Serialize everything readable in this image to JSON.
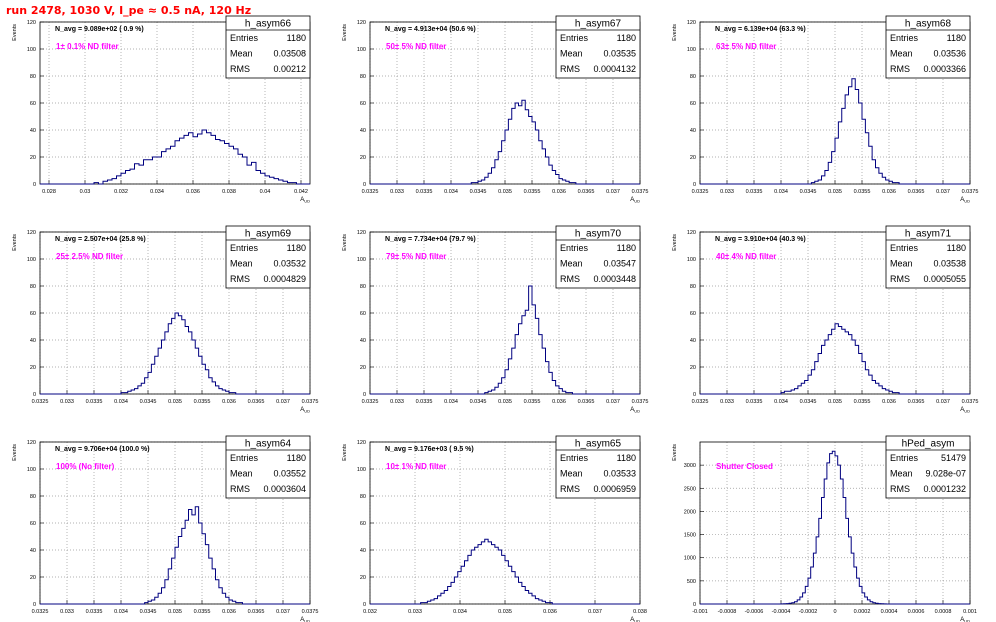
{
  "run_title": "run 2478,  1030 V, I_pe ≈ 0.5 nA, 120 Hz",
  "chart_data": [
    {
      "type": "histogram",
      "name": "h_asym66",
      "entries": "1180",
      "mean": "0.03508",
      "rms": "0.00212",
      "n_avg": "N_avg = 9.089e+02 ( 0.9 %)",
      "filter": "1± 0.1% ND filter",
      "xlabel": "A_UD",
      "ylabel": "Events",
      "ylim": [
        0,
        120
      ],
      "yticks": [
        0,
        20,
        40,
        60,
        80,
        100,
        120
      ],
      "xlim": [
        0.0275,
        0.0425
      ],
      "xticks": [
        "0.028",
        "0.03",
        "0.032",
        "0.034",
        "0.036",
        "0.038",
        "0.04",
        "0.042"
      ],
      "center": 0.03508,
      "sigma": 0.00212,
      "bins": 60,
      "values": [
        0,
        0,
        0,
        0,
        0,
        0,
        0,
        0,
        0,
        0,
        0,
        0,
        1,
        0,
        2,
        3,
        4,
        6,
        8,
        10,
        11,
        15,
        14,
        18,
        18,
        20,
        20,
        24,
        26,
        28,
        32,
        34,
        36,
        38,
        35,
        37,
        40,
        38,
        36,
        33,
        32,
        30,
        28,
        26,
        22,
        20,
        14,
        16,
        10,
        8,
        6,
        5,
        4,
        3,
        2,
        1,
        1,
        0,
        0,
        0
      ]
    },
    {
      "type": "histogram",
      "name": "h_asym67",
      "entries": "1180",
      "mean": "0.03535",
      "rms": "0.0004132",
      "n_avg": "N_avg = 4.913e+04 (50.6 %)",
      "filter": "50± 5% ND filter",
      "xlabel": "A_UD",
      "ylabel": "Events",
      "ylim": [
        0,
        120
      ],
      "yticks": [
        0,
        20,
        40,
        60,
        80,
        100,
        120
      ],
      "xlim": [
        0.0325,
        0.0375
      ],
      "xticks": [
        "0.0325",
        "0.033",
        "0.0335",
        "0.034",
        "0.0345",
        "0.035",
        "0.0355",
        "0.036",
        "0.0365",
        "0.037",
        "0.0375"
      ],
      "center": 0.03535,
      "sigma": 0.0004132,
      "bins": 80,
      "values": [
        0,
        0,
        0,
        0,
        0,
        0,
        0,
        0,
        0,
        0,
        0,
        0,
        0,
        0,
        0,
        0,
        0,
        0,
        0,
        0,
        0,
        0,
        0,
        0,
        0,
        0,
        0,
        0,
        0,
        0,
        1,
        1,
        2,
        3,
        5,
        8,
        12,
        18,
        24,
        32,
        40,
        48,
        56,
        60,
        58,
        62,
        55,
        50,
        46,
        40,
        32,
        26,
        20,
        14,
        10,
        7,
        4,
        3,
        2,
        1,
        1,
        0,
        0,
        0,
        0,
        0,
        0,
        0,
        0,
        0,
        0,
        0,
        0,
        0,
        0,
        0,
        0,
        0,
        0,
        0
      ]
    },
    {
      "type": "histogram",
      "name": "h_asym68",
      "entries": "1180",
      "mean": "0.03536",
      "rms": "0.0003366",
      "n_avg": "N_avg = 6.139e+04 (63.3 %)",
      "filter": "63± 5% ND filter",
      "xlabel": "A_UD",
      "ylabel": "Events",
      "ylim": [
        0,
        120
      ],
      "yticks": [
        0,
        20,
        40,
        60,
        80,
        100,
        120
      ],
      "xlim": [
        0.0325,
        0.0375
      ],
      "xticks": [
        "0.0325",
        "0.033",
        "0.0335",
        "0.034",
        "0.0345",
        "0.035",
        "0.0355",
        "0.036",
        "0.0365",
        "0.037",
        "0.0375"
      ],
      "center": 0.03536,
      "sigma": 0.0003366,
      "bins": 80,
      "values": [
        0,
        0,
        0,
        0,
        0,
        0,
        0,
        0,
        0,
        0,
        0,
        0,
        0,
        0,
        0,
        0,
        0,
        0,
        0,
        0,
        0,
        0,
        0,
        0,
        0,
        0,
        0,
        0,
        0,
        0,
        0,
        0,
        0,
        1,
        2,
        3,
        6,
        10,
        16,
        24,
        34,
        46,
        56,
        66,
        72,
        78,
        70,
        60,
        48,
        38,
        28,
        18,
        12,
        8,
        5,
        3,
        2,
        1,
        1,
        0,
        0,
        0,
        0,
        0,
        0,
        0,
        0,
        0,
        0,
        0,
        0,
        0,
        0,
        0,
        0,
        0,
        0,
        0,
        0,
        0
      ]
    },
    {
      "type": "histogram",
      "name": "h_asym69",
      "entries": "1180",
      "mean": "0.03532",
      "rms": "0.0004829",
      "n_avg": "N_avg = 2.507e+04 (25.8 %)",
      "filter": "25± 2.5% ND filter",
      "xlabel": "A_UD",
      "ylabel": "Events",
      "ylim": [
        0,
        120
      ],
      "yticks": [
        0,
        20,
        40,
        60,
        80,
        100,
        120
      ],
      "xlim": [
        0.0325,
        0.0375
      ],
      "xticks": [
        "0.0325",
        "0.033",
        "0.0335",
        "0.034",
        "0.0345",
        "0.035",
        "0.0355",
        "0.036",
        "0.0365",
        "0.037",
        "0.0375"
      ],
      "center": 0.03532,
      "sigma": 0.0004829,
      "bins": 80,
      "values": [
        0,
        0,
        0,
        0,
        0,
        0,
        0,
        0,
        0,
        0,
        0,
        0,
        0,
        0,
        0,
        0,
        0,
        0,
        0,
        0,
        0,
        0,
        0,
        0,
        1,
        1,
        2,
        3,
        4,
        6,
        8,
        12,
        16,
        22,
        28,
        34,
        40,
        46,
        52,
        56,
        60,
        58,
        55,
        50,
        46,
        40,
        34,
        28,
        22,
        18,
        12,
        9,
        6,
        4,
        3,
        2,
        1,
        1,
        0,
        0,
        0,
        0,
        0,
        0,
        0,
        0,
        0,
        0,
        0,
        0,
        0,
        0,
        0,
        0,
        0,
        0,
        0,
        0,
        0,
        0
      ]
    },
    {
      "type": "histogram",
      "name": "h_asym70",
      "entries": "1180",
      "mean": "0.03547",
      "rms": "0.0003448",
      "n_avg": "N_avg = 7.734e+04 (79.7 %)",
      "filter": "79± 5% ND filter",
      "xlabel": "A_UD",
      "ylabel": "Events",
      "ylim": [
        0,
        120
      ],
      "yticks": [
        0,
        20,
        40,
        60,
        80,
        100,
        120
      ],
      "xlim": [
        0.0325,
        0.0375
      ],
      "xticks": [
        "0.0325",
        "0.033",
        "0.0335",
        "0.034",
        "0.0345",
        "0.035",
        "0.0355",
        "0.036",
        "0.0365",
        "0.037",
        "0.0375"
      ],
      "center": 0.03547,
      "sigma": 0.0003448,
      "bins": 80,
      "values": [
        0,
        0,
        0,
        0,
        0,
        0,
        0,
        0,
        0,
        0,
        0,
        0,
        0,
        0,
        0,
        0,
        0,
        0,
        0,
        0,
        0,
        0,
        0,
        0,
        0,
        0,
        0,
        0,
        0,
        0,
        0,
        0,
        0,
        0,
        1,
        2,
        3,
        5,
        8,
        12,
        18,
        26,
        34,
        44,
        52,
        58,
        62,
        80,
        66,
        56,
        44,
        34,
        24,
        16,
        10,
        6,
        4,
        2,
        1,
        1,
        0,
        0,
        0,
        0,
        0,
        0,
        0,
        0,
        0,
        0,
        0,
        0,
        0,
        0,
        0,
        0,
        0,
        0,
        0,
        0
      ]
    },
    {
      "type": "histogram",
      "name": "h_asym71",
      "entries": "1180",
      "mean": "0.03538",
      "rms": "0.0005055",
      "n_avg": "N_avg = 3.910e+04 (40.3 %)",
      "filter": "40± 4% ND filter",
      "xlabel": "A_UD",
      "ylabel": "Events",
      "ylim": [
        0,
        120
      ],
      "yticks": [
        0,
        20,
        40,
        60,
        80,
        100,
        120
      ],
      "xlim": [
        0.0325,
        0.0375
      ],
      "xticks": [
        "0.0325",
        "0.033",
        "0.0335",
        "0.034",
        "0.0345",
        "0.035",
        "0.0355",
        "0.036",
        "0.0365",
        "0.037",
        "0.0375"
      ],
      "center": 0.03538,
      "sigma": 0.0005055,
      "bins": 80,
      "values": [
        0,
        0,
        0,
        0,
        0,
        0,
        0,
        0,
        0,
        0,
        0,
        0,
        0,
        0,
        0,
        0,
        0,
        0,
        0,
        0,
        0,
        0,
        0,
        0,
        1,
        2,
        2,
        3,
        4,
        6,
        8,
        10,
        14,
        18,
        24,
        30,
        36,
        40,
        44,
        48,
        52,
        50,
        48,
        46,
        44,
        40,
        36,
        30,
        24,
        18,
        14,
        10,
        8,
        6,
        4,
        3,
        2,
        1,
        1,
        0,
        0,
        0,
        0,
        0,
        0,
        0,
        0,
        0,
        0,
        0,
        0,
        0,
        0,
        0,
        0,
        0,
        0,
        0,
        0,
        0
      ]
    },
    {
      "type": "histogram",
      "name": "h_asym64",
      "entries": "1180",
      "mean": "0.03552",
      "rms": "0.0003604",
      "n_avg": "N_avg = 9.706e+04 (100.0 %)",
      "filter": "100% (No filter)",
      "xlabel": "A_UD",
      "ylabel": "Events",
      "ylim": [
        0,
        120
      ],
      "yticks": [
        0,
        20,
        40,
        60,
        80,
        100,
        120
      ],
      "xlim": [
        0.0325,
        0.0375
      ],
      "xticks": [
        "0.0325",
        "0.033",
        "0.0335",
        "0.034",
        "0.0345",
        "0.035",
        "0.0355",
        "0.036",
        "0.0365",
        "0.037",
        "0.0375"
      ],
      "center": 0.03552,
      "sigma": 0.0003604,
      "bins": 80,
      "values": [
        0,
        0,
        0,
        0,
        0,
        0,
        0,
        0,
        0,
        0,
        0,
        0,
        0,
        0,
        0,
        0,
        0,
        0,
        0,
        0,
        0,
        0,
        0,
        0,
        0,
        0,
        0,
        0,
        0,
        0,
        0,
        1,
        2,
        3,
        5,
        8,
        12,
        18,
        26,
        34,
        42,
        50,
        56,
        62,
        70,
        66,
        72,
        60,
        52,
        44,
        34,
        26,
        18,
        12,
        8,
        5,
        3,
        2,
        1,
        1,
        0,
        0,
        0,
        0,
        0,
        0,
        0,
        0,
        0,
        0,
        0,
        0,
        0,
        0,
        0,
        0,
        0,
        0,
        0,
        0
      ]
    },
    {
      "type": "histogram",
      "name": "h_asym65",
      "entries": "1180",
      "mean": "0.03533",
      "rms": "0.0006959",
      "n_avg": "N_avg = 9.176e+03 ( 9.5 %)",
      "filter": "10± 1% ND filter",
      "xlabel": "A_UD",
      "ylabel": "Events",
      "ylim": [
        0,
        120
      ],
      "yticks": [
        0,
        20,
        40,
        60,
        80,
        100,
        120
      ],
      "xlim": [
        0.032,
        0.038
      ],
      "xticks": [
        "0.032",
        "0.033",
        "0.034",
        "0.035",
        "0.036",
        "0.037",
        "0.038"
      ],
      "center": 0.03533,
      "sigma": 0.0006959,
      "bins": 80,
      "values": [
        0,
        0,
        0,
        0,
        0,
        0,
        0,
        0,
        0,
        0,
        0,
        0,
        0,
        0,
        0,
        1,
        1,
        2,
        3,
        4,
        6,
        8,
        10,
        13,
        16,
        20,
        24,
        28,
        32,
        36,
        40,
        42,
        44,
        46,
        48,
        46,
        44,
        42,
        40,
        36,
        32,
        28,
        24,
        20,
        16,
        13,
        10,
        8,
        6,
        4,
        3,
        2,
        1,
        1,
        0,
        0,
        0,
        0,
        0,
        0,
        0,
        0,
        0,
        0,
        0,
        0,
        0,
        0,
        0,
        0,
        0,
        0,
        0,
        0,
        0,
        0,
        0,
        0,
        0,
        0
      ]
    },
    {
      "type": "histogram",
      "name": "hPed_asym",
      "entries": "51479",
      "mean": "9.028e-07",
      "rms": "0.0001232",
      "n_avg": "",
      "filter": "Shutter Closed",
      "xlabel": "A_UD",
      "ylabel": "Events",
      "ylim": [
        0,
        3500
      ],
      "yticks": [
        0,
        500,
        1000,
        1500,
        2000,
        2500,
        3000
      ],
      "xlim": [
        -0.001,
        0.001
      ],
      "xticks": [
        "-0.001",
        "-0.0008",
        "-0.0006",
        "-0.0004",
        "-0.0002",
        "0",
        "0.0002",
        "0.0004",
        "0.0006",
        "0.0008",
        "0.001"
      ],
      "center": 0.0,
      "sigma": 0.0001232,
      "bins": 100,
      "values": [
        0,
        0,
        0,
        0,
        0,
        0,
        0,
        0,
        0,
        0,
        0,
        0,
        0,
        0,
        0,
        0,
        0,
        0,
        0,
        0,
        0,
        0,
        0,
        0,
        0,
        0,
        0,
        0,
        0,
        1,
        2,
        4,
        8,
        15,
        28,
        50,
        90,
        150,
        240,
        380,
        560,
        800,
        1100,
        1450,
        1850,
        2300,
        2700,
        3050,
        3250,
        3300,
        3200,
        3000,
        2700,
        2300,
        1850,
        1450,
        1100,
        800,
        560,
        380,
        240,
        150,
        90,
        50,
        28,
        15,
        8,
        4,
        2,
        1,
        0,
        0,
        0,
        0,
        0,
        0,
        0,
        0,
        0,
        0,
        0,
        0,
        0,
        0,
        0,
        0,
        0,
        0,
        0,
        0,
        0,
        0,
        0,
        0,
        0,
        0,
        0,
        0,
        0,
        0
      ]
    }
  ]
}
